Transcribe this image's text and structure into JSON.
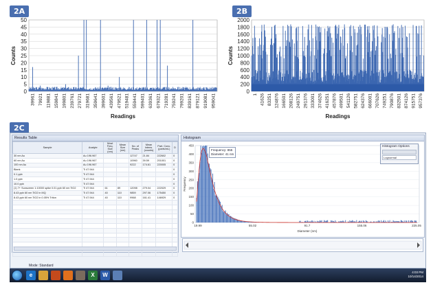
{
  "panels": {
    "a": "2A",
    "b": "2B",
    "c": "2C"
  },
  "chart_data": [
    {
      "type": "bar",
      "panel": "2A",
      "title": "",
      "xlabel": "Readings",
      "ylabel": "Counts",
      "ylim": [
        0,
        50
      ],
      "yticks": [
        0,
        5,
        10,
        15,
        20,
        25,
        30,
        35,
        40,
        45,
        50
      ],
      "xticks": [
        "39961",
        "79921",
        "119881",
        "159841",
        "199801",
        "239761",
        "279721",
        "319681",
        "359641",
        "399601",
        "439561",
        "479521",
        "519481",
        "559441",
        "599401",
        "639361",
        "679321",
        "719281",
        "759241",
        "799201",
        "839161",
        "879121",
        "919081",
        "959041"
      ],
      "xlim": [
        1,
        999000
      ],
      "spikes": [
        {
          "x": 20000,
          "y": 17
        },
        {
          "x": 263000,
          "y": 25
        },
        {
          "x": 292000,
          "y": 50
        },
        {
          "x": 305000,
          "y": 50
        },
        {
          "x": 380000,
          "y": 50
        },
        {
          "x": 480000,
          "y": 10
        },
        {
          "x": 555000,
          "y": 50
        },
        {
          "x": 625000,
          "y": 50
        },
        {
          "x": 680000,
          "y": 50
        },
        {
          "x": 697000,
          "y": 50
        },
        {
          "x": 735000,
          "y": 18
        },
        {
          "x": 870000,
          "y": 50
        },
        {
          "x": 195000,
          "y": 5
        },
        {
          "x": 60000,
          "y": 4
        },
        {
          "x": 100000,
          "y": 3
        },
        {
          "x": 420000,
          "y": 4
        },
        {
          "x": 790000,
          "y": 3
        }
      ],
      "baseline": 1
    },
    {
      "type": "bar",
      "panel": "2B",
      "title": "",
      "xlabel": "Readings",
      "ylabel": "Counts",
      "ylim": [
        0,
        2000
      ],
      "yticks": [
        0,
        200,
        400,
        600,
        800,
        1000,
        1200,
        1400,
        1600,
        1800,
        2000
      ],
      "xticks": [
        "1",
        "41626",
        "83251",
        "124876",
        "166501",
        "208126",
        "249751",
        "291376",
        "333001",
        "374626",
        "416251",
        "457876",
        "499501",
        "541126",
        "582751",
        "624376",
        "666001",
        "707626",
        "749251",
        "790876",
        "832501",
        "874126",
        "915751",
        "957376"
      ],
      "xlim": [
        1,
        999000
      ],
      "upper_level": 1800,
      "band_level": 200
    }
  ],
  "app": {
    "results_title": "Results Table",
    "columns": [
      "Sample",
      "Analyte",
      "Most Freq. Size (nm)",
      "Mean Size (nm)",
      "No. of Peaks",
      "Mean Intens. (counts)",
      "Part. Conc. (parts/mL)",
      "D"
    ],
    "rows": [
      [
        "30 nm Au",
        "Au 196.967",
        "",
        "",
        "12747",
        "21.84",
        "222602",
        "0"
      ],
      [
        "60 nm Au",
        "Au 196.967",
        "",
        "",
        "10960",
        "39.59",
        "201001",
        "0"
      ],
      [
        "100 nm Au",
        "Au 196.967",
        "",
        "",
        "9222",
        "174.61",
        "220005",
        "0"
      ],
      [
        "Blank",
        "Ti 47.944",
        "",
        "",
        "",
        "",
        "",
        "0"
      ],
      [
        "0.1 ppb",
        "Ti 47.944",
        "",
        "",
        "",
        "",
        "",
        "0"
      ],
      [
        "1.0 ppb",
        "Ti 47.944",
        "",
        "",
        "",
        "",
        "",
        "0"
      ],
      [
        "10.0 ppb",
        "Ti 47.944",
        "",
        "",
        "",
        "",
        "",
        "0"
      ],
      [
        "(1) 7+ Sunscreen 1:10000 spike 0.01 ppb 60 nm TiO2",
        "Ti 47.944",
        "61",
        "89",
        "12098",
        "279.04",
        "222029",
        "0"
      ],
      [
        "8.43 ppb 60 nm TiO2 in MQ",
        "Ti 47.944",
        "40",
        "110",
        "9859",
        "297.06",
        "175450",
        "0"
      ],
      [
        "8.43 ppb 60 nm TiO2 in 0.05% Triton",
        "Ti 47.944",
        "40",
        "110",
        "9968",
        "161.41",
        "146929",
        "0"
      ]
    ],
    "histogram_title": "Histogram",
    "histogram": {
      "ylabel": "Frequency",
      "xlabel": "Diameter (nm)",
      "yticks": [
        0,
        50,
        100,
        150,
        200,
        250,
        300,
        350,
        400,
        450
      ],
      "xticks": [
        "19.99",
        "55.02",
        "91.7",
        "155.06",
        "225.05"
      ],
      "legend_freq": "Frequency: 855",
      "legend_diam": "Diameter: 41 nm",
      "options_title": "Histogram Options",
      "options_value": "Lognormal",
      "ymax": 450
    },
    "taskbar_title": "Mode: Standard",
    "tray_time": "4:03 PM",
    "tray_date": "10/14/2014"
  }
}
